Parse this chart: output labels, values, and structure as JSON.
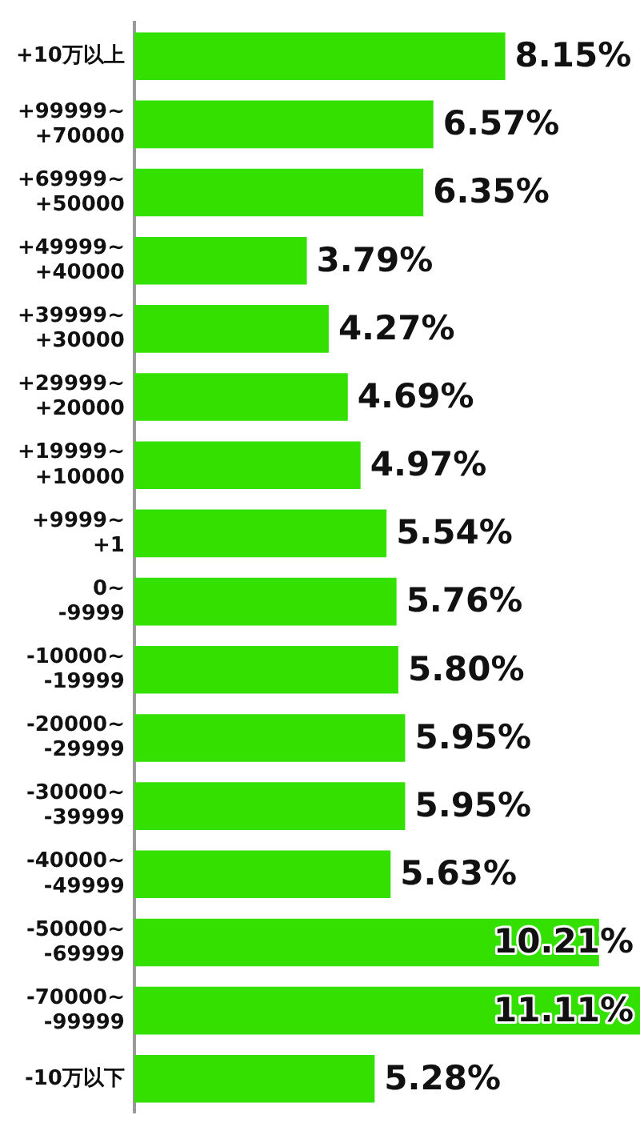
{
  "chart_data": {
    "type": "bar",
    "orientation": "horizontal",
    "categories": [
      "+10万以上",
      "+99999~+70000",
      "+69999~+50000",
      "+49999~+40000",
      "+39999~+30000",
      "+29999~+20000",
      "+19999~+10000",
      "+9999~+1",
      "0~-9999",
      "-10000~-19999",
      "-20000~-29999",
      "-30000~-39999",
      "-40000~-49999",
      "-50000~-69999",
      "-70000~-99999",
      "-10万以下"
    ],
    "values": [
      8.15,
      6.57,
      6.35,
      3.79,
      4.27,
      4.69,
      4.97,
      5.54,
      5.76,
      5.8,
      5.95,
      5.95,
      5.63,
      10.21,
      11.11,
      5.28
    ],
    "value_labels": [
      "8.15%",
      "6.57%",
      "6.35%",
      "3.79%",
      "4.27%",
      "4.69%",
      "4.97%",
      "5.54%",
      "5.76%",
      "5.80%",
      "5.95%",
      "5.95%",
      "5.63%",
      "10.21%",
      "11.11%",
      "5.28%"
    ],
    "color": "#33e000",
    "grid": false,
    "legend": false
  }
}
